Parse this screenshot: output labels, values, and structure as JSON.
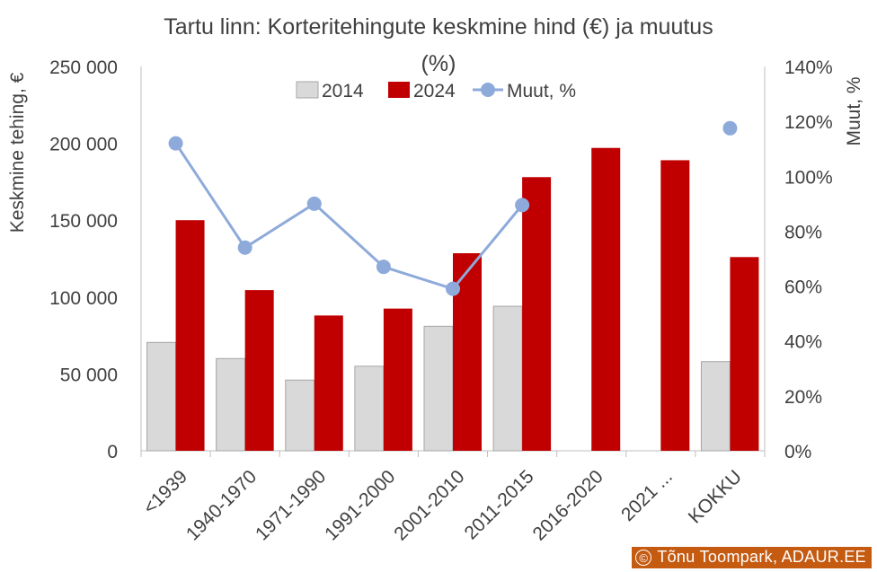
{
  "chart_data": {
    "type": "bar",
    "title": "Tartu linn: Korteritehingute keskmine hind (€) ja muutus (%)",
    "title_lines": [
      "Tartu linn: Korteritehingute keskmine hind (€) ja muutus",
      "(%)"
    ],
    "ylabel": "Keskmine tehing, €",
    "y2label": "Muut, %",
    "categories": [
      "<1939",
      "1940-1970",
      "1971-1990",
      "1991-2000",
      "2001-2010",
      "2011-2015",
      "2016-2020",
      "2021 ...",
      "KOKKU"
    ],
    "series": [
      {
        "name": "2014",
        "type": "bar",
        "axis": "left",
        "color": "#d9d9d9",
        "values": [
          70500,
          60000,
          46000,
          55000,
          81000,
          94000,
          null,
          null,
          58000
        ]
      },
      {
        "name": "2024",
        "type": "bar",
        "axis": "left",
        "color": "#c00000",
        "values": [
          150000,
          104500,
          88000,
          92500,
          128500,
          178000,
          197000,
          189000,
          126000
        ]
      },
      {
        "name": "Muut, %",
        "type": "line",
        "axis": "right",
        "color": "#8eaadb",
        "values": [
          112,
          74,
          90,
          67,
          59,
          89.5,
          null,
          null,
          117.5
        ]
      }
    ],
    "ylim": [
      0,
      250000
    ],
    "y_ticks": [
      "0",
      "50 000",
      "100 000",
      "150 000",
      "200 000",
      "250 000"
    ],
    "y2lim": [
      0,
      140
    ],
    "y2_ticks": [
      "0%",
      "20%",
      "40%",
      "60%",
      "80%",
      "100%",
      "120%",
      "140%"
    ],
    "legend_position": "top",
    "grid": false
  },
  "credit": {
    "symbol": "©",
    "text": "Tõnu Toompark, ADAUR.EE",
    "color": "#c55a11"
  }
}
